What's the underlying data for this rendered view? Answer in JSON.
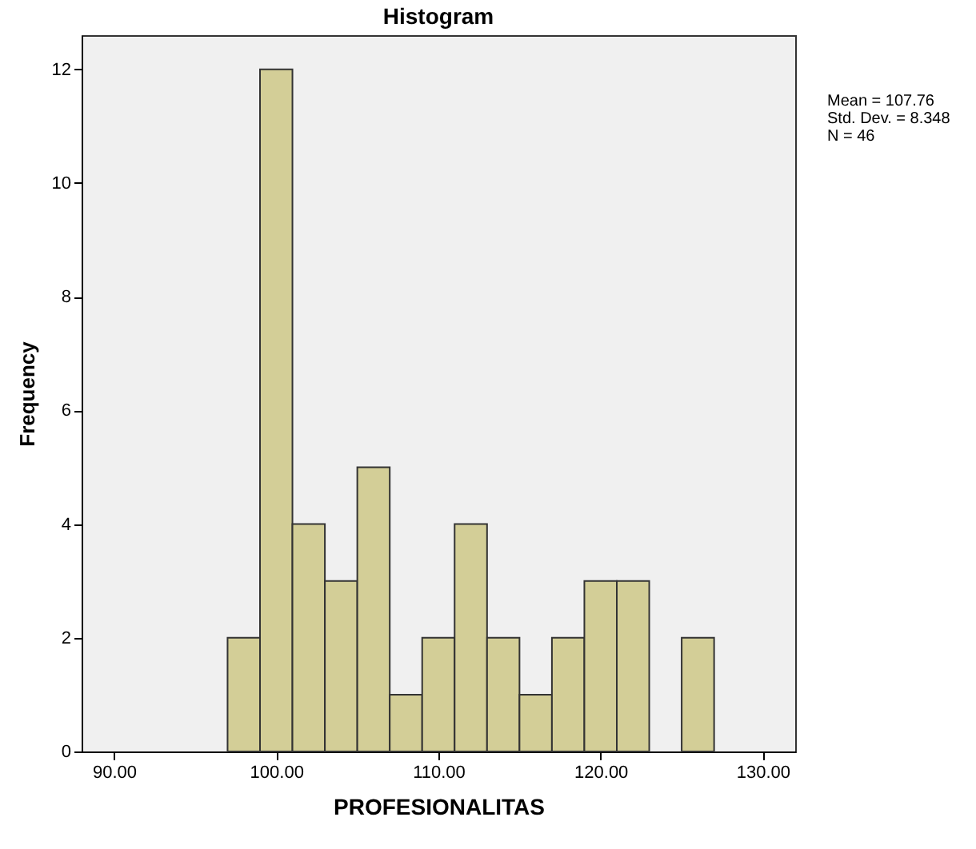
{
  "chart_data": {
    "type": "histogram",
    "title": "Histogram",
    "xlabel": "PROFESIONALITAS",
    "ylabel": "Frequency",
    "bins": [
      97,
      99,
      101,
      103,
      105,
      107,
      109,
      111,
      113,
      115,
      117,
      119,
      121,
      123,
      125,
      127
    ],
    "values": [
      2,
      12,
      4,
      3,
      5,
      1,
      2,
      4,
      2,
      1,
      2,
      3,
      3,
      null,
      2
    ],
    "color": "#d3ce97",
    "xlim": [
      88,
      132
    ],
    "xticks": [
      {
        "value": 90,
        "label": "90.00"
      },
      {
        "value": 100,
        "label": "100.00"
      },
      {
        "value": 110,
        "label": "110.00"
      },
      {
        "value": 120,
        "label": "120.00"
      },
      {
        "value": 130,
        "label": "130.00"
      }
    ],
    "ylim": [
      0,
      12.6
    ],
    "yticks": [
      0,
      2,
      4,
      6,
      8,
      10,
      12
    ],
    "grid": false,
    "annotations": [
      "Mean = 107.76",
      "Std. Dev. = 8.348",
      "N = 46"
    ]
  }
}
